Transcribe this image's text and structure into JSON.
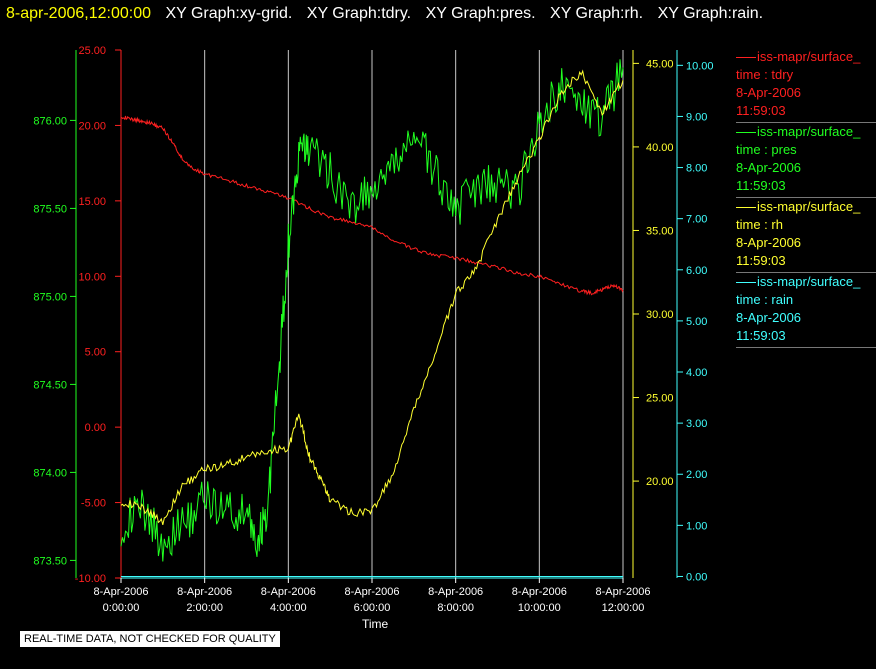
{
  "header": {
    "datetime": "8-apr-2006,12:00:00",
    "graph_titles": [
      "XY Graph:xy-grid.",
      "XY Graph:tdry.",
      "XY Graph:pres.",
      "XY Graph:rh.",
      "XY Graph:rain."
    ]
  },
  "colors": {
    "tdry": "#ff2020",
    "pres": "#20ff20",
    "rh": "#ffff30",
    "rain": "#40ffff",
    "grid": "#c8c8c8"
  },
  "legend": [
    {
      "name": "iss-mapr/surface_",
      "var": "time : tdry",
      "date": "8-Apr-2006",
      "time": "11:59:03",
      "color": "#ff2020"
    },
    {
      "name": "iss-mapr/surface_",
      "var": "time : pres",
      "date": "8-Apr-2006",
      "time": "11:59:03",
      "color": "#20ff20"
    },
    {
      "name": "iss-mapr/surface_",
      "var": "time : rh",
      "date": "8-Apr-2006",
      "time": "11:59:03",
      "color": "#ffff30"
    },
    {
      "name": "iss-mapr/surface_",
      "var": "time : rain",
      "date": "8-Apr-2006",
      "time": "11:59:03",
      "color": "#40ffff"
    }
  ],
  "disclaimer": "REAL-TIME DATA, NOT CHECKED FOR QUALITY",
  "chart_data": {
    "type": "line",
    "xlabel": "Time",
    "x_ticks": [
      {
        "date": "8-Apr-2006",
        "time": "0:00:00",
        "hour": 0
      },
      {
        "date": "8-Apr-2006",
        "time": "2:00:00",
        "hour": 2
      },
      {
        "date": "8-Apr-2006",
        "time": "4:00:00",
        "hour": 4
      },
      {
        "date": "8-Apr-2006",
        "time": "6:00:00",
        "hour": 6
      },
      {
        "date": "8-Apr-2006",
        "time": "8:00:00",
        "hour": 8
      },
      {
        "date": "8-Apr-2006",
        "time": "10:00:00",
        "hour": 10
      },
      {
        "date": "8-Apr-2006",
        "time": "12:00:00",
        "hour": 12
      }
    ],
    "xlim": [
      0,
      12
    ],
    "grid": "vertical",
    "axes": {
      "tdry": {
        "ylim": [
          -10,
          25
        ],
        "ticks": [
          "25.00",
          "20.00",
          "15.00",
          "10.00",
          "5.00",
          "0.00",
          "-5.00",
          "-10.00"
        ],
        "side": "left-inner"
      },
      "pres": {
        "ylim": [
          873.4,
          876.4
        ],
        "ticks": [
          "876.00",
          "875.50",
          "875.00",
          "874.50",
          "874.00",
          "873.50"
        ],
        "side": "left-outer"
      },
      "rh": {
        "ylim": [
          14.2,
          45.8
        ],
        "ticks": [
          "45.00",
          "40.00",
          "35.00",
          "30.00",
          "25.00",
          "20.00"
        ],
        "side": "right-inner"
      },
      "rain": {
        "ylim": [
          -0.03,
          10.3
        ],
        "ticks": [
          "10.00",
          "9.00",
          "8.00",
          "7.00",
          "6.00",
          "5.00",
          "4.00",
          "3.00",
          "2.00",
          "1.00",
          "0.00"
        ],
        "side": "right-outer"
      }
    },
    "series": [
      {
        "name": "tdry",
        "axis": "tdry",
        "x": [
          0,
          0.25,
          0.5,
          0.75,
          1,
          1.25,
          1.5,
          1.75,
          2,
          2.5,
          3,
          3.5,
          4,
          4.5,
          5,
          5.5,
          6,
          6.5,
          7,
          7.5,
          8,
          8.5,
          9,
          9.5,
          10,
          10.5,
          11,
          11.25,
          11.5,
          11.75,
          12
        ],
        "y": [
          20.6,
          20.4,
          20.3,
          20.1,
          19.8,
          18.8,
          17.6,
          17.1,
          16.8,
          16.4,
          16.0,
          15.6,
          15.2,
          14.5,
          13.9,
          13.6,
          13.2,
          12.4,
          11.8,
          11.4,
          11.2,
          10.9,
          10.6,
          10.2,
          10.0,
          9.5,
          9.0,
          8.9,
          9.1,
          9.4,
          9.1
        ]
      },
      {
        "name": "pres",
        "axis": "pres",
        "x": [
          0,
          0.5,
          1,
          1.5,
          2,
          2.5,
          3,
          3.25,
          3.5,
          3.75,
          4,
          4.25,
          4.5,
          5,
          5.5,
          6,
          6.5,
          7,
          7.5,
          8,
          8.5,
          9,
          9.5,
          10,
          10.5,
          11,
          11.5,
          12
        ],
        "y": [
          873.7,
          873.8,
          873.6,
          873.7,
          873.85,
          873.8,
          873.75,
          873.6,
          873.8,
          874.5,
          875.3,
          875.8,
          875.85,
          875.7,
          875.5,
          875.6,
          875.7,
          875.95,
          875.7,
          875.5,
          875.6,
          875.65,
          875.6,
          876.0,
          876.2,
          876.1,
          876.0,
          876.3
        ]
      },
      {
        "name": "rh",
        "axis": "rh",
        "x": [
          0,
          0.5,
          1,
          1.5,
          2,
          2.5,
          3,
          3.5,
          4,
          4.25,
          4.5,
          4.75,
          5,
          5.5,
          6,
          6.5,
          7,
          7.5,
          8,
          8.5,
          9,
          9.5,
          10,
          10.5,
          11,
          11.5,
          12
        ],
        "y": [
          18.8,
          18.4,
          17.6,
          19.8,
          20.7,
          21.0,
          21.4,
          21.8,
          22.0,
          24.0,
          21.5,
          20.2,
          18.9,
          18.1,
          18.2,
          20.4,
          24.2,
          27.6,
          31.2,
          32.8,
          35.6,
          38.2,
          40.5,
          43.2,
          44.5,
          42.0,
          44.0
        ]
      },
      {
        "name": "rain",
        "axis": "rain",
        "x": [
          0,
          12
        ],
        "y": [
          0,
          0
        ]
      }
    ]
  }
}
